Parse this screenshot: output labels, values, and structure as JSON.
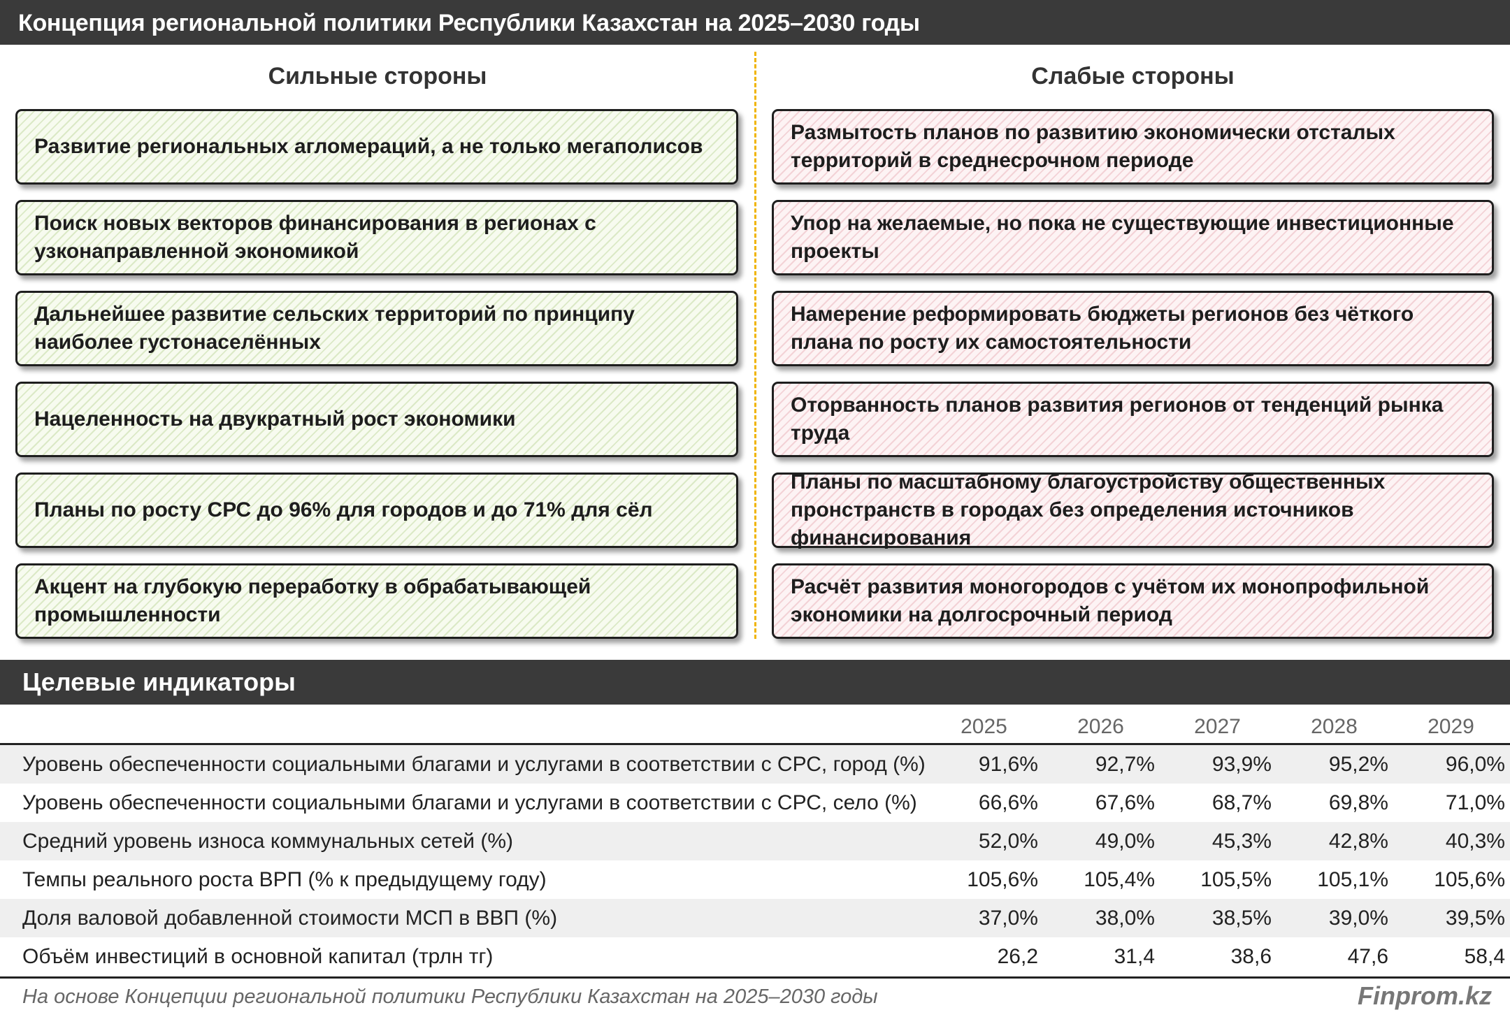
{
  "title": "Концепция региональной политики Республики Казахстан на 2025–2030 годы",
  "strengths_heading": "Сильные стороны",
  "weaknesses_heading": "Слабые стороны",
  "strengths": [
    "Развитие региональных агломераций, а не только мегаполисов",
    "Поиск новых векторов финансирования в регионах с узконаправленной экономикой",
    "Дальнейшее развитие сельских территорий по принципу наиболее густонаселённых",
    "Нацеленность на двукратный рост экономики",
    "Планы по росту СРС до 96% для городов и до 71% для сёл",
    "Акцент на глубокую переработку в обрабатывающей промышленности"
  ],
  "weaknesses": [
    "Размытость планов по развитию экономически отсталых территорий в среднесрочном периоде",
    "Упор на желаемые, но пока не существующие инвестиционные проекты",
    "Намерение реформировать бюджеты регионов без чёткого плана по росту их самостоятельности",
    "Оторванность планов развития регионов от тенденций рынка труда",
    "Планы по масштабному благоустройству общественных пронстранств в городах без определения источников финансирования",
    "Расчёт развития моногородов с учётом их монопрофильной экономики на долгосрочный период"
  ],
  "indicators": {
    "heading": "Целевые индикаторы",
    "years": [
      "2025",
      "2026",
      "2027",
      "2028",
      "2029"
    ],
    "rows": [
      {
        "label": "Уровень обеспеченности социальными благами и услугами в соответствии с СРС, город (%)",
        "values": [
          "91,6%",
          "92,7%",
          "93,9%",
          "95,2%",
          "96,0%"
        ]
      },
      {
        "label": "Уровень обеспеченности социальными благами и услугами в соответствии с СРС, село (%)",
        "values": [
          "66,6%",
          "67,6%",
          "68,7%",
          "69,8%",
          "71,0%"
        ]
      },
      {
        "label": "Средний уровень износа коммунальных сетей (%)",
        "values": [
          "52,0%",
          "49,0%",
          "45,3%",
          "42,8%",
          "40,3%"
        ]
      },
      {
        "label": "Темпы реального роста ВРП (% к предыдущему году)",
        "values": [
          "105,6%",
          "105,4%",
          "105,5%",
          "105,1%",
          "105,6%"
        ]
      },
      {
        "label": "Доля валовой добавленной стоимости МСП в ВВП (%)",
        "values": [
          "37,0%",
          "38,0%",
          "38,5%",
          "39,0%",
          "39,5%"
        ]
      },
      {
        "label": "Объём инвестиций в основной капитал (трлн тг)",
        "values": [
          "26,2",
          "31,4",
          "38,6",
          "47,6",
          "58,4"
        ]
      }
    ]
  },
  "source": "На основе Концепции региональной политики Республики Казахстан на 2025–2030 годы",
  "brand": "Finprom.kz"
}
